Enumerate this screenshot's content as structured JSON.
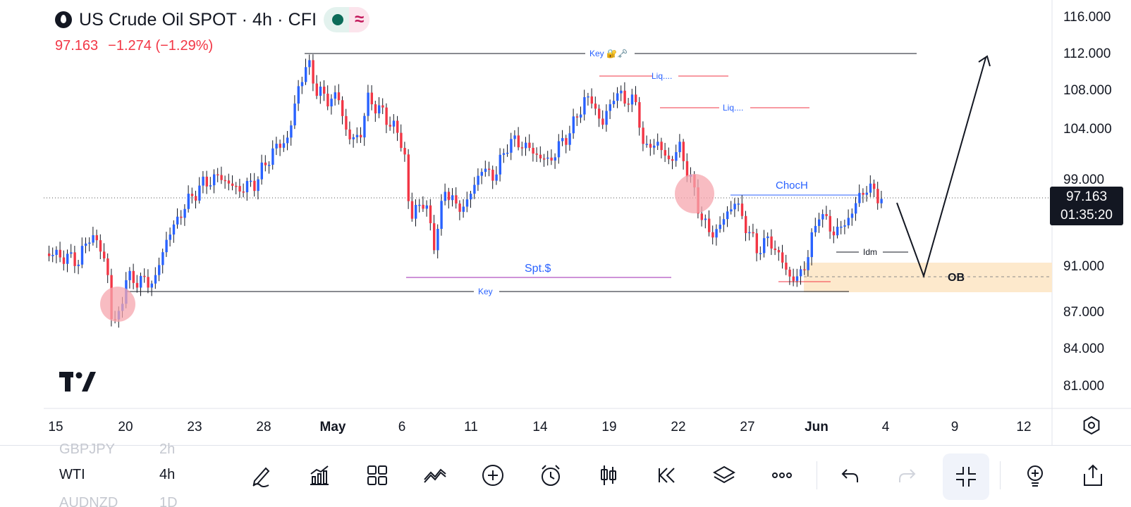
{
  "header": {
    "symbol": "US Crude Oil SPOT · 4h · CFI",
    "last_price": "97.163",
    "change": "−1.274 (−1.29%)"
  },
  "price_tag": {
    "price": "97.163",
    "countdown": "01:35:20"
  },
  "price_axis": {
    "labels": [
      "116.000",
      "112.000",
      "108.000",
      "104.000",
      "99.000",
      "91.000",
      "87.000",
      "84.000",
      "81.000"
    ]
  },
  "time_axis": {
    "labels": [
      "15",
      "20",
      "23",
      "28",
      "May",
      "6",
      "11",
      "14",
      "19",
      "22",
      "27",
      "Jun",
      "4",
      "9",
      "12"
    ]
  },
  "annotations": {
    "key_top": "Key 🔐🗝️",
    "liq1": "Liq....",
    "liq2": "Liq....",
    "choch": "ChocH",
    "idm": "Idm",
    "spt": "Spt.$",
    "key_bottom": "Key",
    "ob": "OB"
  },
  "colors": {
    "up": "#2962ff",
    "down": "#f23645",
    "accent": "#2962ff",
    "ob_zone": "#fde9cc",
    "circle": "#f6a6ae"
  },
  "watchlist": [
    {
      "symbol": "GBPJPY",
      "tf": "2h"
    },
    {
      "symbol": "WTI",
      "tf": "4h"
    },
    {
      "symbol": "AUDNZD",
      "tf": "1D"
    }
  ],
  "toolbar_icons": [
    "pencil-icon",
    "indicators-icon",
    "layouts-icon",
    "drawing-tools-icon",
    "add-icon",
    "alert-icon",
    "candles-icon",
    "replay-icon",
    "layers-icon",
    "more-icon",
    "undo-icon",
    "redo-icon",
    "fullscreen-exit-icon",
    "ideas-icon",
    "share-icon"
  ]
}
